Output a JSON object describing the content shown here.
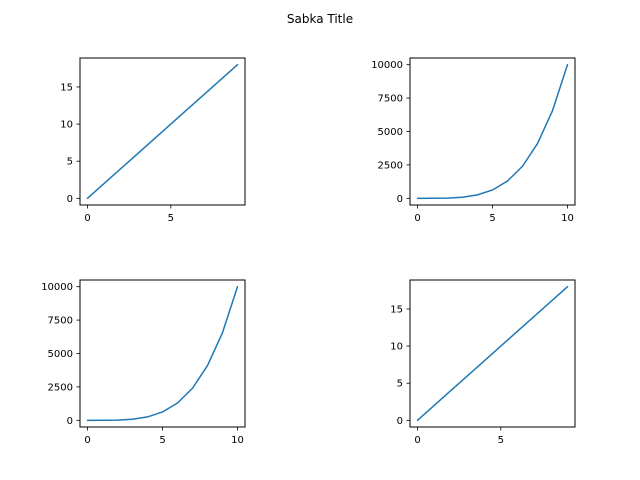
{
  "figure": {
    "title": "Sabka Title",
    "line_color": "#1f77b4"
  },
  "chart_data": [
    {
      "type": "line",
      "position": "top-left",
      "x": [
        0,
        1,
        2,
        3,
        4,
        5,
        6,
        7,
        8,
        9
      ],
      "y": [
        0,
        2,
        4,
        6,
        8,
        10,
        12,
        14,
        16,
        18
      ],
      "xlim": [
        -0.45,
        9.45
      ],
      "ylim": [
        -0.9,
        18.9
      ],
      "xticks": [
        0,
        5
      ],
      "yticks": [
        0,
        5,
        10,
        15
      ],
      "xtick_labels": [
        "0",
        "5"
      ],
      "ytick_labels": [
        "0",
        "5",
        "10",
        "15"
      ]
    },
    {
      "type": "line",
      "position": "top-right",
      "x": [
        0,
        1,
        2,
        3,
        4,
        5,
        6,
        7,
        8,
        9,
        10
      ],
      "y": [
        0,
        1,
        16,
        81,
        256,
        625,
        1296,
        2401,
        4096,
        6561,
        10000
      ],
      "xlim": [
        -0.5,
        10.5
      ],
      "ylim": [
        -500,
        10500
      ],
      "xticks": [
        0,
        5,
        10
      ],
      "yticks": [
        0,
        2500,
        5000,
        7500,
        10000
      ],
      "xtick_labels": [
        "0",
        "5",
        "10"
      ],
      "ytick_labels": [
        "0",
        "2500",
        "5000",
        "7500",
        "10000"
      ]
    },
    {
      "type": "line",
      "position": "bottom-left",
      "x": [
        0,
        1,
        2,
        3,
        4,
        5,
        6,
        7,
        8,
        9,
        10
      ],
      "y": [
        0,
        1,
        16,
        81,
        256,
        625,
        1296,
        2401,
        4096,
        6561,
        10000
      ],
      "xlim": [
        -0.5,
        10.5
      ],
      "ylim": [
        -500,
        10500
      ],
      "xticks": [
        0,
        5,
        10
      ],
      "yticks": [
        0,
        2500,
        5000,
        7500,
        10000
      ],
      "xtick_labels": [
        "0",
        "5",
        "10"
      ],
      "ytick_labels": [
        "0",
        "2500",
        "5000",
        "7500",
        "10000"
      ]
    },
    {
      "type": "line",
      "position": "bottom-right",
      "x": [
        0,
        1,
        2,
        3,
        4,
        5,
        6,
        7,
        8,
        9
      ],
      "y": [
        0,
        2,
        4,
        6,
        8,
        10,
        12,
        14,
        16,
        18
      ],
      "xlim": [
        -0.45,
        9.45
      ],
      "ylim": [
        -0.9,
        18.9
      ],
      "xticks": [
        0,
        5
      ],
      "yticks": [
        0,
        5,
        10,
        15
      ],
      "xtick_labels": [
        "0",
        "5"
      ],
      "ytick_labels": [
        "0",
        "5",
        "10",
        "15"
      ]
    }
  ]
}
